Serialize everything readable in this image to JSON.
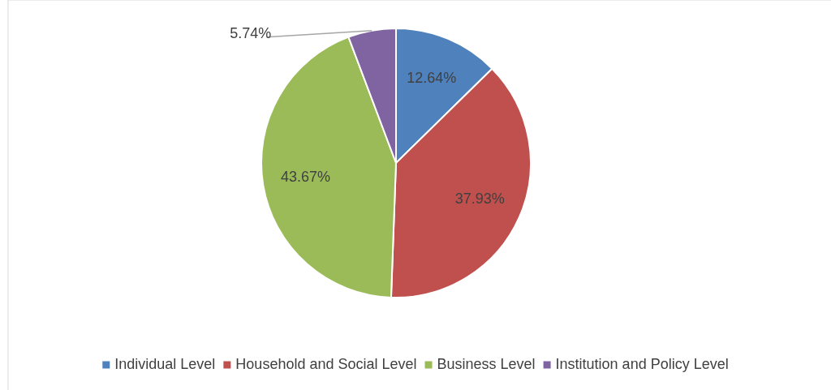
{
  "chart_data": {
    "type": "pie",
    "categories": [
      "Individual Level",
      "Household and Social Level",
      "Business Level",
      "Institution and Policy Level"
    ],
    "values": [
      12.64,
      37.93,
      43.67,
      5.74
    ],
    "colors": [
      "#4f81bd",
      "#c0504d",
      "#9bbb59",
      "#8064a2"
    ],
    "value_labels": [
      "12.64%",
      "37.93%",
      "43.67%",
      "5.74%"
    ],
    "legend": "bottom"
  }
}
